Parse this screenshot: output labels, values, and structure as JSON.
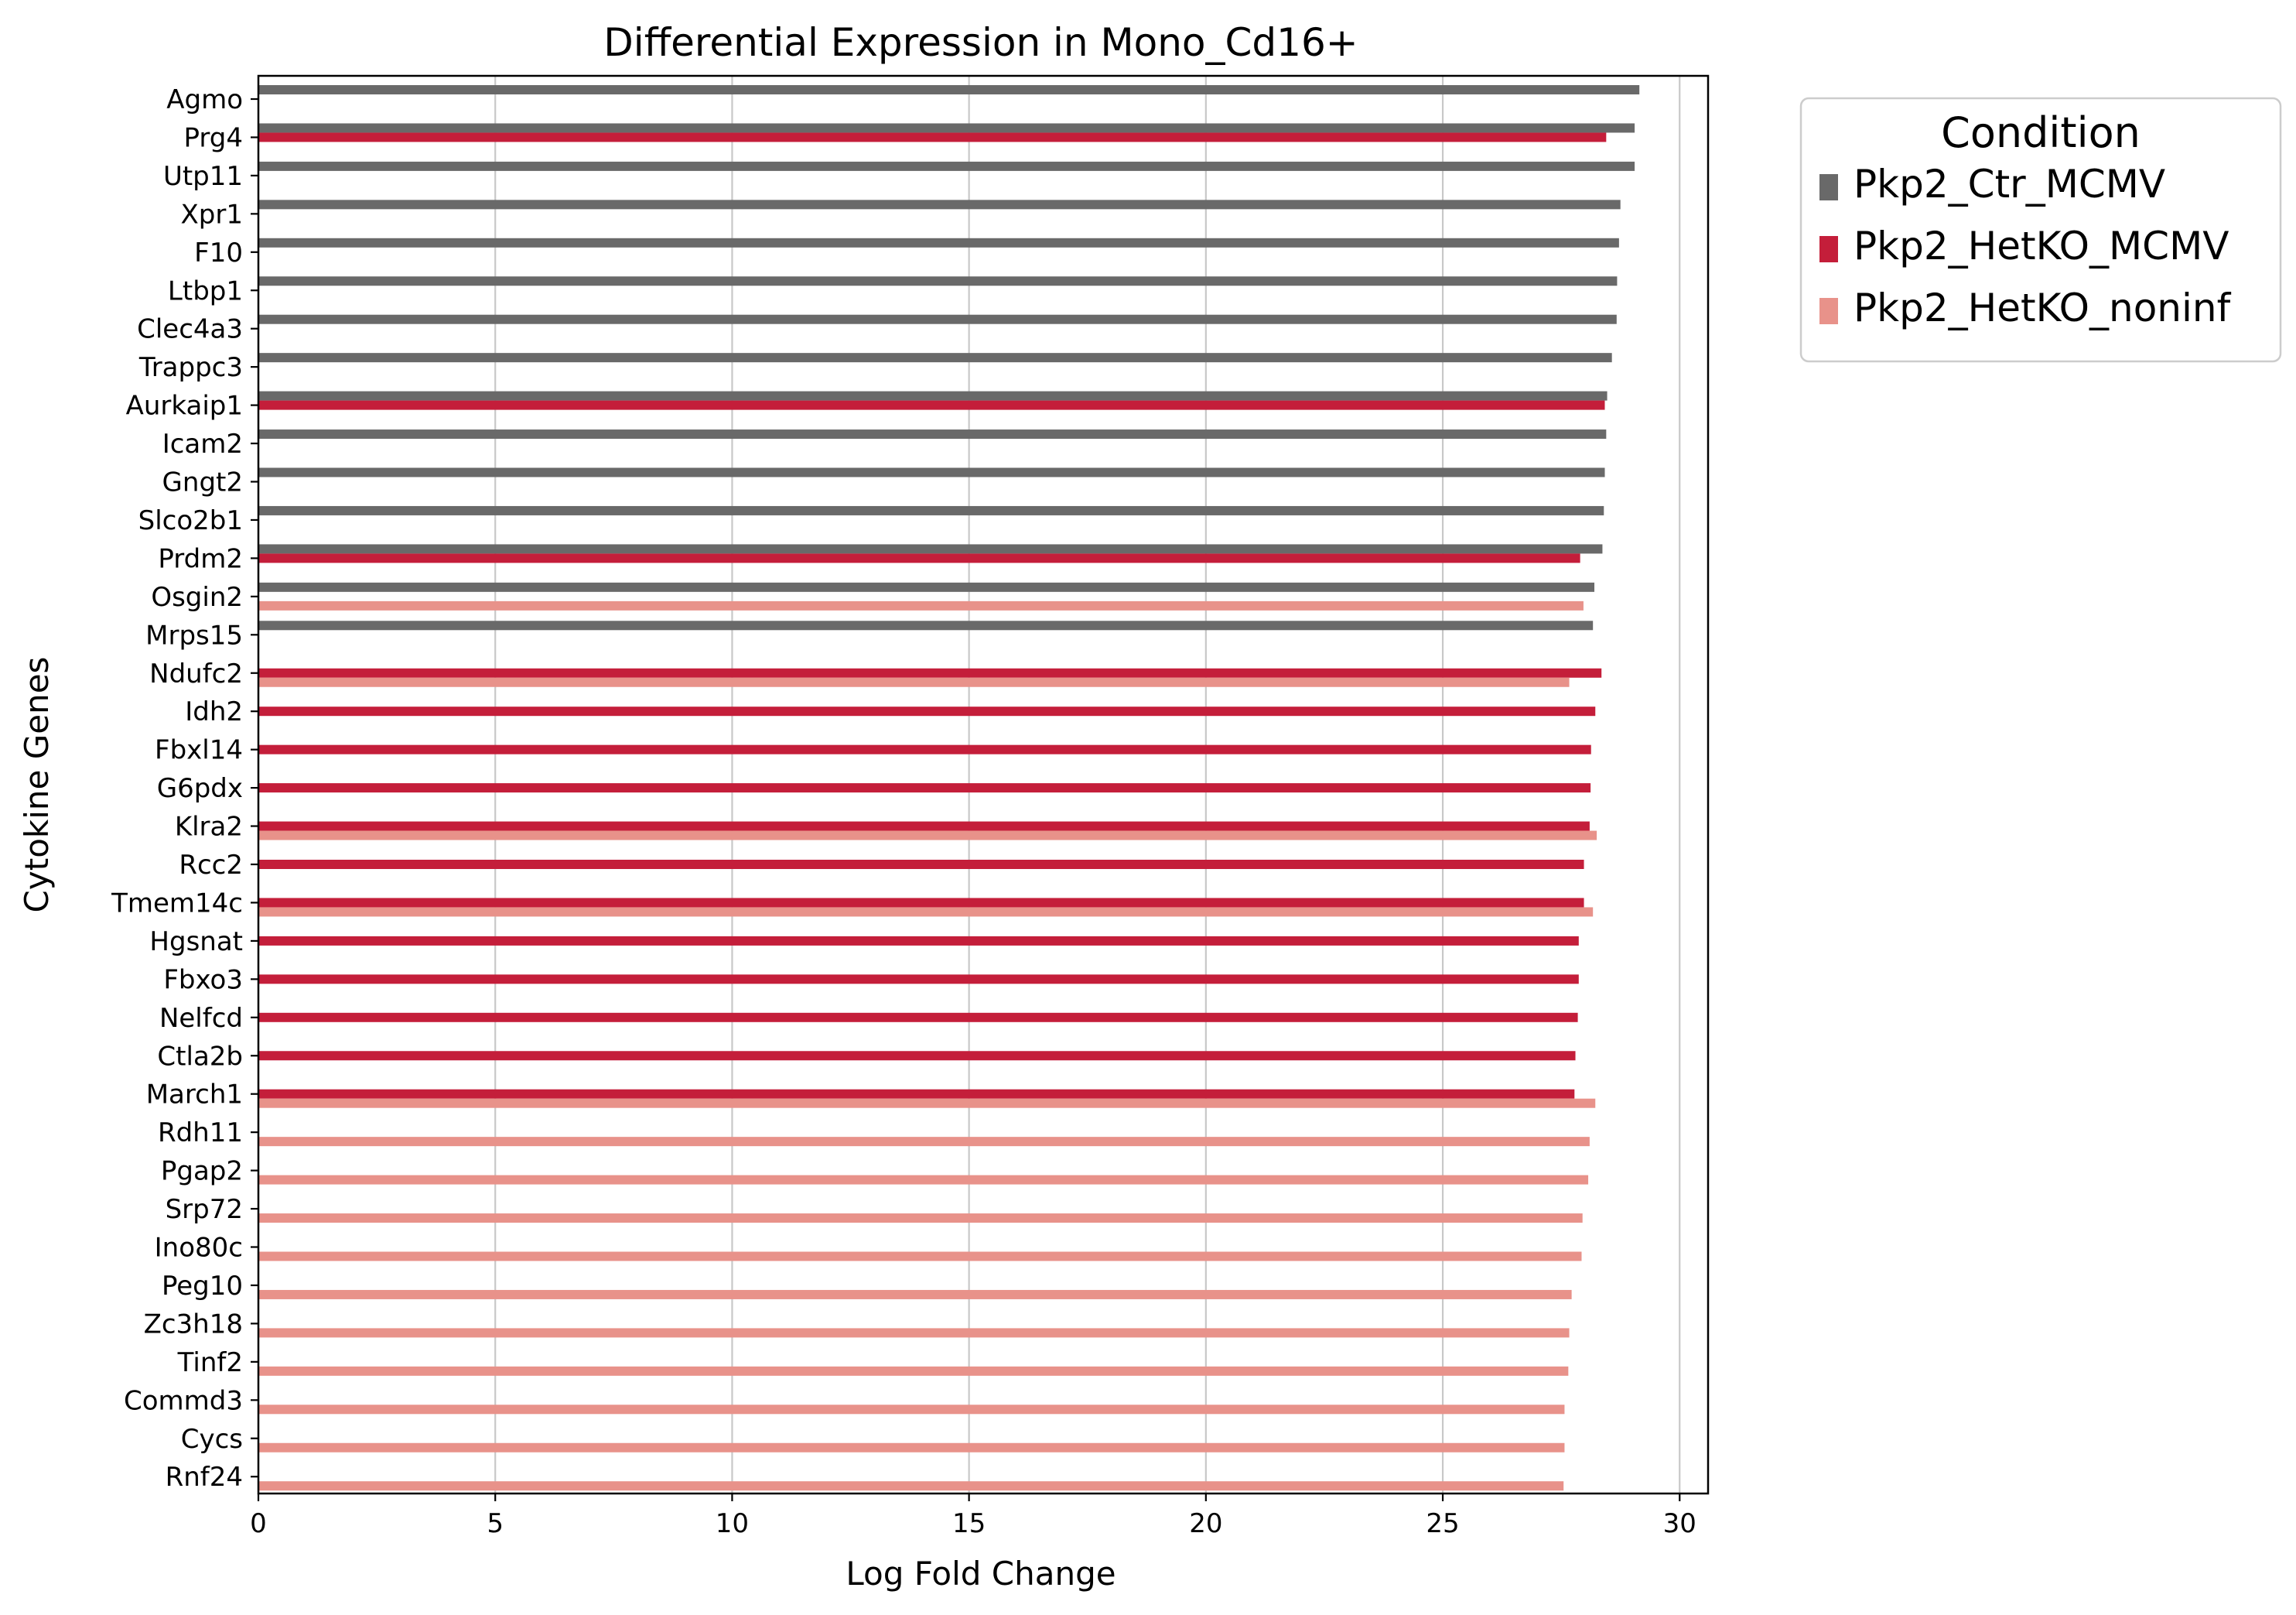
{
  "chart_data": {
    "type": "bar",
    "orientation": "horizontal",
    "title": "Differential Expression in Mono_Cd16+",
    "xlabel": "Log Fold Change",
    "ylabel": "Cytokine Genes",
    "xlim": [
      0,
      30.6
    ],
    "xticks": [
      0,
      5,
      10,
      15,
      20,
      25,
      30
    ],
    "grid": "vertical",
    "legend": {
      "title": "Condition",
      "placement": "outside-top-right"
    },
    "categories": [
      "Agmo",
      "Prg4",
      "Utp11",
      "Xpr1",
      "F10",
      "Ltbp1",
      "Clec4a3",
      "Trappc3",
      "Aurkaip1",
      "Icam2",
      "Gngt2",
      "Slco2b1",
      "Prdm2",
      "Osgin2",
      "Mrps15",
      "Ndufc2",
      "Idh2",
      "Fbxl14",
      "G6pdx",
      "Klra2",
      "Rcc2",
      "Tmem14c",
      "Hgsnat",
      "Fbxo3",
      "Nelfcd",
      "Ctla2b",
      "March1",
      "Rdh11",
      "Pgap2",
      "Srp72",
      "Ino80c",
      "Peg10",
      "Zc3h18",
      "Tinf2",
      "Commd3",
      "Cycs",
      "Rnf24"
    ],
    "series": [
      {
        "name": "Pkp2_Ctr_MCMV",
        "color": "#696969",
        "values": [
          29.15,
          29.05,
          29.05,
          28.75,
          28.72,
          28.68,
          28.67,
          28.57,
          28.47,
          28.45,
          28.42,
          28.4,
          28.37,
          28.2,
          28.17,
          null,
          null,
          null,
          null,
          null,
          null,
          null,
          null,
          null,
          null,
          null,
          null,
          null,
          null,
          null,
          null,
          null,
          null,
          null,
          null,
          null,
          null
        ]
      },
      {
        "name": "Pkp2_HetKO_MCMV",
        "color": "#C41E3A",
        "values": [
          null,
          28.45,
          null,
          null,
          null,
          null,
          null,
          null,
          28.42,
          null,
          null,
          null,
          27.9,
          null,
          null,
          28.35,
          28.22,
          28.13,
          28.12,
          28.1,
          27.98,
          27.98,
          27.87,
          27.87,
          27.85,
          27.8,
          27.78,
          null,
          null,
          null,
          null,
          null,
          null,
          null,
          null,
          null,
          null
        ]
      },
      {
        "name": "Pkp2_HetKO_noninf",
        "color": "#E8928A",
        "values": [
          null,
          null,
          null,
          null,
          null,
          null,
          null,
          null,
          null,
          null,
          null,
          null,
          null,
          27.97,
          null,
          27.67,
          null,
          null,
          null,
          28.25,
          null,
          28.17,
          null,
          null,
          null,
          null,
          28.22,
          28.1,
          28.07,
          27.95,
          27.93,
          27.72,
          27.67,
          27.65,
          27.57,
          27.57,
          27.55
        ]
      }
    ]
  }
}
